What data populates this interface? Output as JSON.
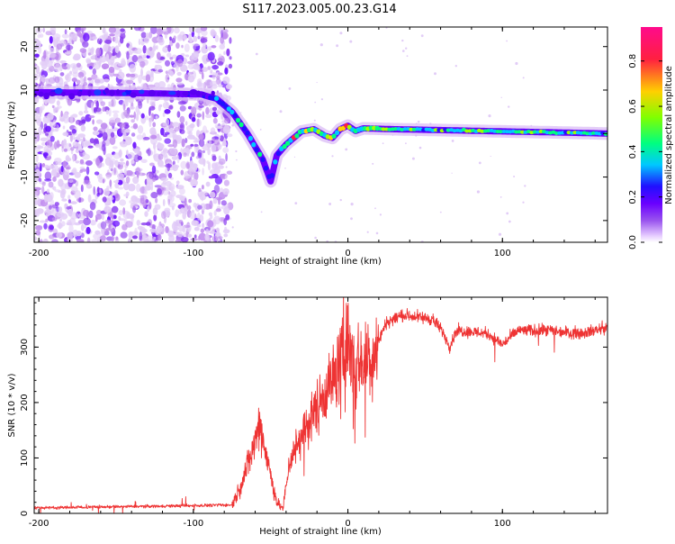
{
  "title": "S117.2023.005.00.23.G14",
  "colors": {
    "snr_line": "#ee3333",
    "colormap": [
      "#ffffff",
      "#d9b8f5",
      "#9a55ee",
      "#6a00ff",
      "#2010ff",
      "#00c8ff",
      "#00ff80",
      "#a0ff00",
      "#ffd000",
      "#ff2040",
      "#ff0a8c"
    ]
  },
  "chart_data": [
    {
      "type": "heatmap",
      "name": "spectrogram",
      "xlabel": "Height of straight line (km)",
      "ylabel": "Frequency (Hz)",
      "xlim": [
        -203,
        168
      ],
      "ylim": [
        -25,
        24.5
      ],
      "xticks": [
        -200,
        -100,
        0,
        100
      ],
      "xtick_labels": [
        "-200",
        "-100",
        "0",
        "100"
      ],
      "yticks": [
        -20,
        -10,
        0,
        10,
        20
      ],
      "ytick_labels": [
        "-20",
        "-10",
        "0",
        "10",
        "20"
      ],
      "ridge": {
        "x": [
          -203,
          -160,
          -120,
          -95,
          -85,
          -75,
          -65,
          -55,
          -50,
          -46,
          -40,
          -30,
          -22,
          -15,
          -10,
          -5,
          0,
          5,
          10,
          30,
          60,
          100,
          130,
          168
        ],
        "y": [
          9.5,
          9.4,
          9.2,
          9.0,
          8.0,
          5.0,
          0.0,
          -6.0,
          -11.0,
          -5.0,
          -2.5,
          0.5,
          1.0,
          -0.5,
          -1.0,
          1.0,
          1.8,
          0.6,
          1.2,
          1.0,
          0.8,
          0.5,
          0.3,
          0.0
        ]
      },
      "noise_region_x": [
        -203,
        -80
      ],
      "colorbar": {
        "label": "Normalized spectral amplitude",
        "range": [
          0,
          0.95
        ],
        "ticks": [
          0.0,
          0.2,
          0.4,
          0.6,
          0.8
        ],
        "tick_labels": [
          "0.0",
          "0.2",
          "0.4",
          "0.6",
          "0.8"
        ]
      }
    },
    {
      "type": "line",
      "name": "snr",
      "xlabel": "Height of straight line (km)",
      "ylabel": "SNR (10 * v/v)",
      "xlim": [
        -203,
        168
      ],
      "ylim": [
        0,
        390
      ],
      "xticks": [
        -200,
        -100,
        0,
        100
      ],
      "xtick_labels": [
        "-200",
        "-100",
        "0",
        "100"
      ],
      "yticks": [
        0,
        100,
        200,
        300
      ],
      "ytick_labels": [
        "0",
        "100",
        "200",
        "300"
      ],
      "envelope": {
        "x": [
          -203,
          -150,
          -100,
          -85,
          -75,
          -70,
          -62,
          -57,
          -52,
          -46,
          -42,
          -38,
          -32,
          -25,
          -15,
          -8,
          -2,
          0,
          5,
          15,
          25,
          35,
          55,
          62,
          66,
          70,
          90,
          100,
          110,
          130,
          150,
          168
        ],
        "y": [
          10,
          12,
          14,
          15,
          15,
          45,
          110,
          165,
          95,
          20,
          8,
          90,
          130,
          165,
          220,
          250,
          300,
          310,
          270,
          280,
          345,
          358,
          350,
          325,
          300,
          330,
          325,
          305,
          330,
          330,
          325,
          335
        ]
      }
    }
  ]
}
